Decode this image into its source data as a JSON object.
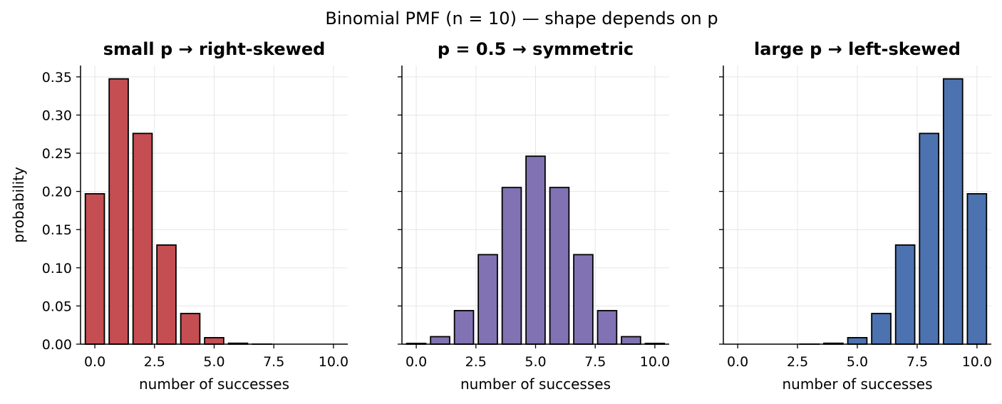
{
  "figure": {
    "suptitle": "Binomial PMF (n = 10) — shape depends on p"
  },
  "chart_data": [
    {
      "type": "bar",
      "title": "small p → right-skewed",
      "xlabel": "number of successes",
      "ylabel": "probability",
      "color": "#c44e52",
      "x": [
        0,
        1,
        2,
        3,
        4,
        5,
        6,
        7,
        8,
        9,
        10
      ],
      "values": [
        0.1969,
        0.3474,
        0.2759,
        0.1298,
        0.0401,
        0.0085,
        0.0012,
        0.0001,
        0.0,
        0.0,
        0.0
      ],
      "xlim": [
        -0.6,
        10.6
      ],
      "ylim": [
        0,
        0.3648
      ],
      "xticks": [
        "0.0",
        "2.5",
        "5.0",
        "7.5",
        "10.0"
      ],
      "yticks": [
        "0.00",
        "0.05",
        "0.10",
        "0.15",
        "0.20",
        "0.25",
        "0.30",
        "0.35"
      ],
      "grid": true
    },
    {
      "type": "bar",
      "title": "p = 0.5 → symmetric",
      "xlabel": "number of successes",
      "ylabel": "",
      "color": "#8172b3",
      "x": [
        0,
        1,
        2,
        3,
        4,
        5,
        6,
        7,
        8,
        9,
        10
      ],
      "values": [
        0.001,
        0.0098,
        0.0439,
        0.1172,
        0.2051,
        0.2461,
        0.2051,
        0.1172,
        0.0439,
        0.0098,
        0.001
      ],
      "xlim": [
        -0.6,
        10.6
      ],
      "ylim": [
        0,
        0.3648
      ],
      "xticks": [
        "0.0",
        "2.5",
        "5.0",
        "7.5",
        "10.0"
      ],
      "yticks": [
        "0.00",
        "0.05",
        "0.10",
        "0.15",
        "0.20",
        "0.25",
        "0.30",
        "0.35"
      ],
      "grid": true
    },
    {
      "type": "bar",
      "title": "large p → left-skewed",
      "xlabel": "number of successes",
      "ylabel": "",
      "color": "#4c72b0",
      "x": [
        0,
        1,
        2,
        3,
        4,
        5,
        6,
        7,
        8,
        9,
        10
      ],
      "values": [
        0.0,
        0.0,
        0.0,
        0.0001,
        0.0012,
        0.0085,
        0.0401,
        0.1298,
        0.2759,
        0.3474,
        0.1969
      ],
      "xlim": [
        -0.6,
        10.6
      ],
      "ylim": [
        0,
        0.3648
      ],
      "xticks": [
        "0.0",
        "2.5",
        "5.0",
        "7.5",
        "10.0"
      ],
      "yticks": [
        "0.00",
        "0.05",
        "0.10",
        "0.15",
        "0.20",
        "0.25",
        "0.30",
        "0.35"
      ],
      "grid": true
    }
  ]
}
